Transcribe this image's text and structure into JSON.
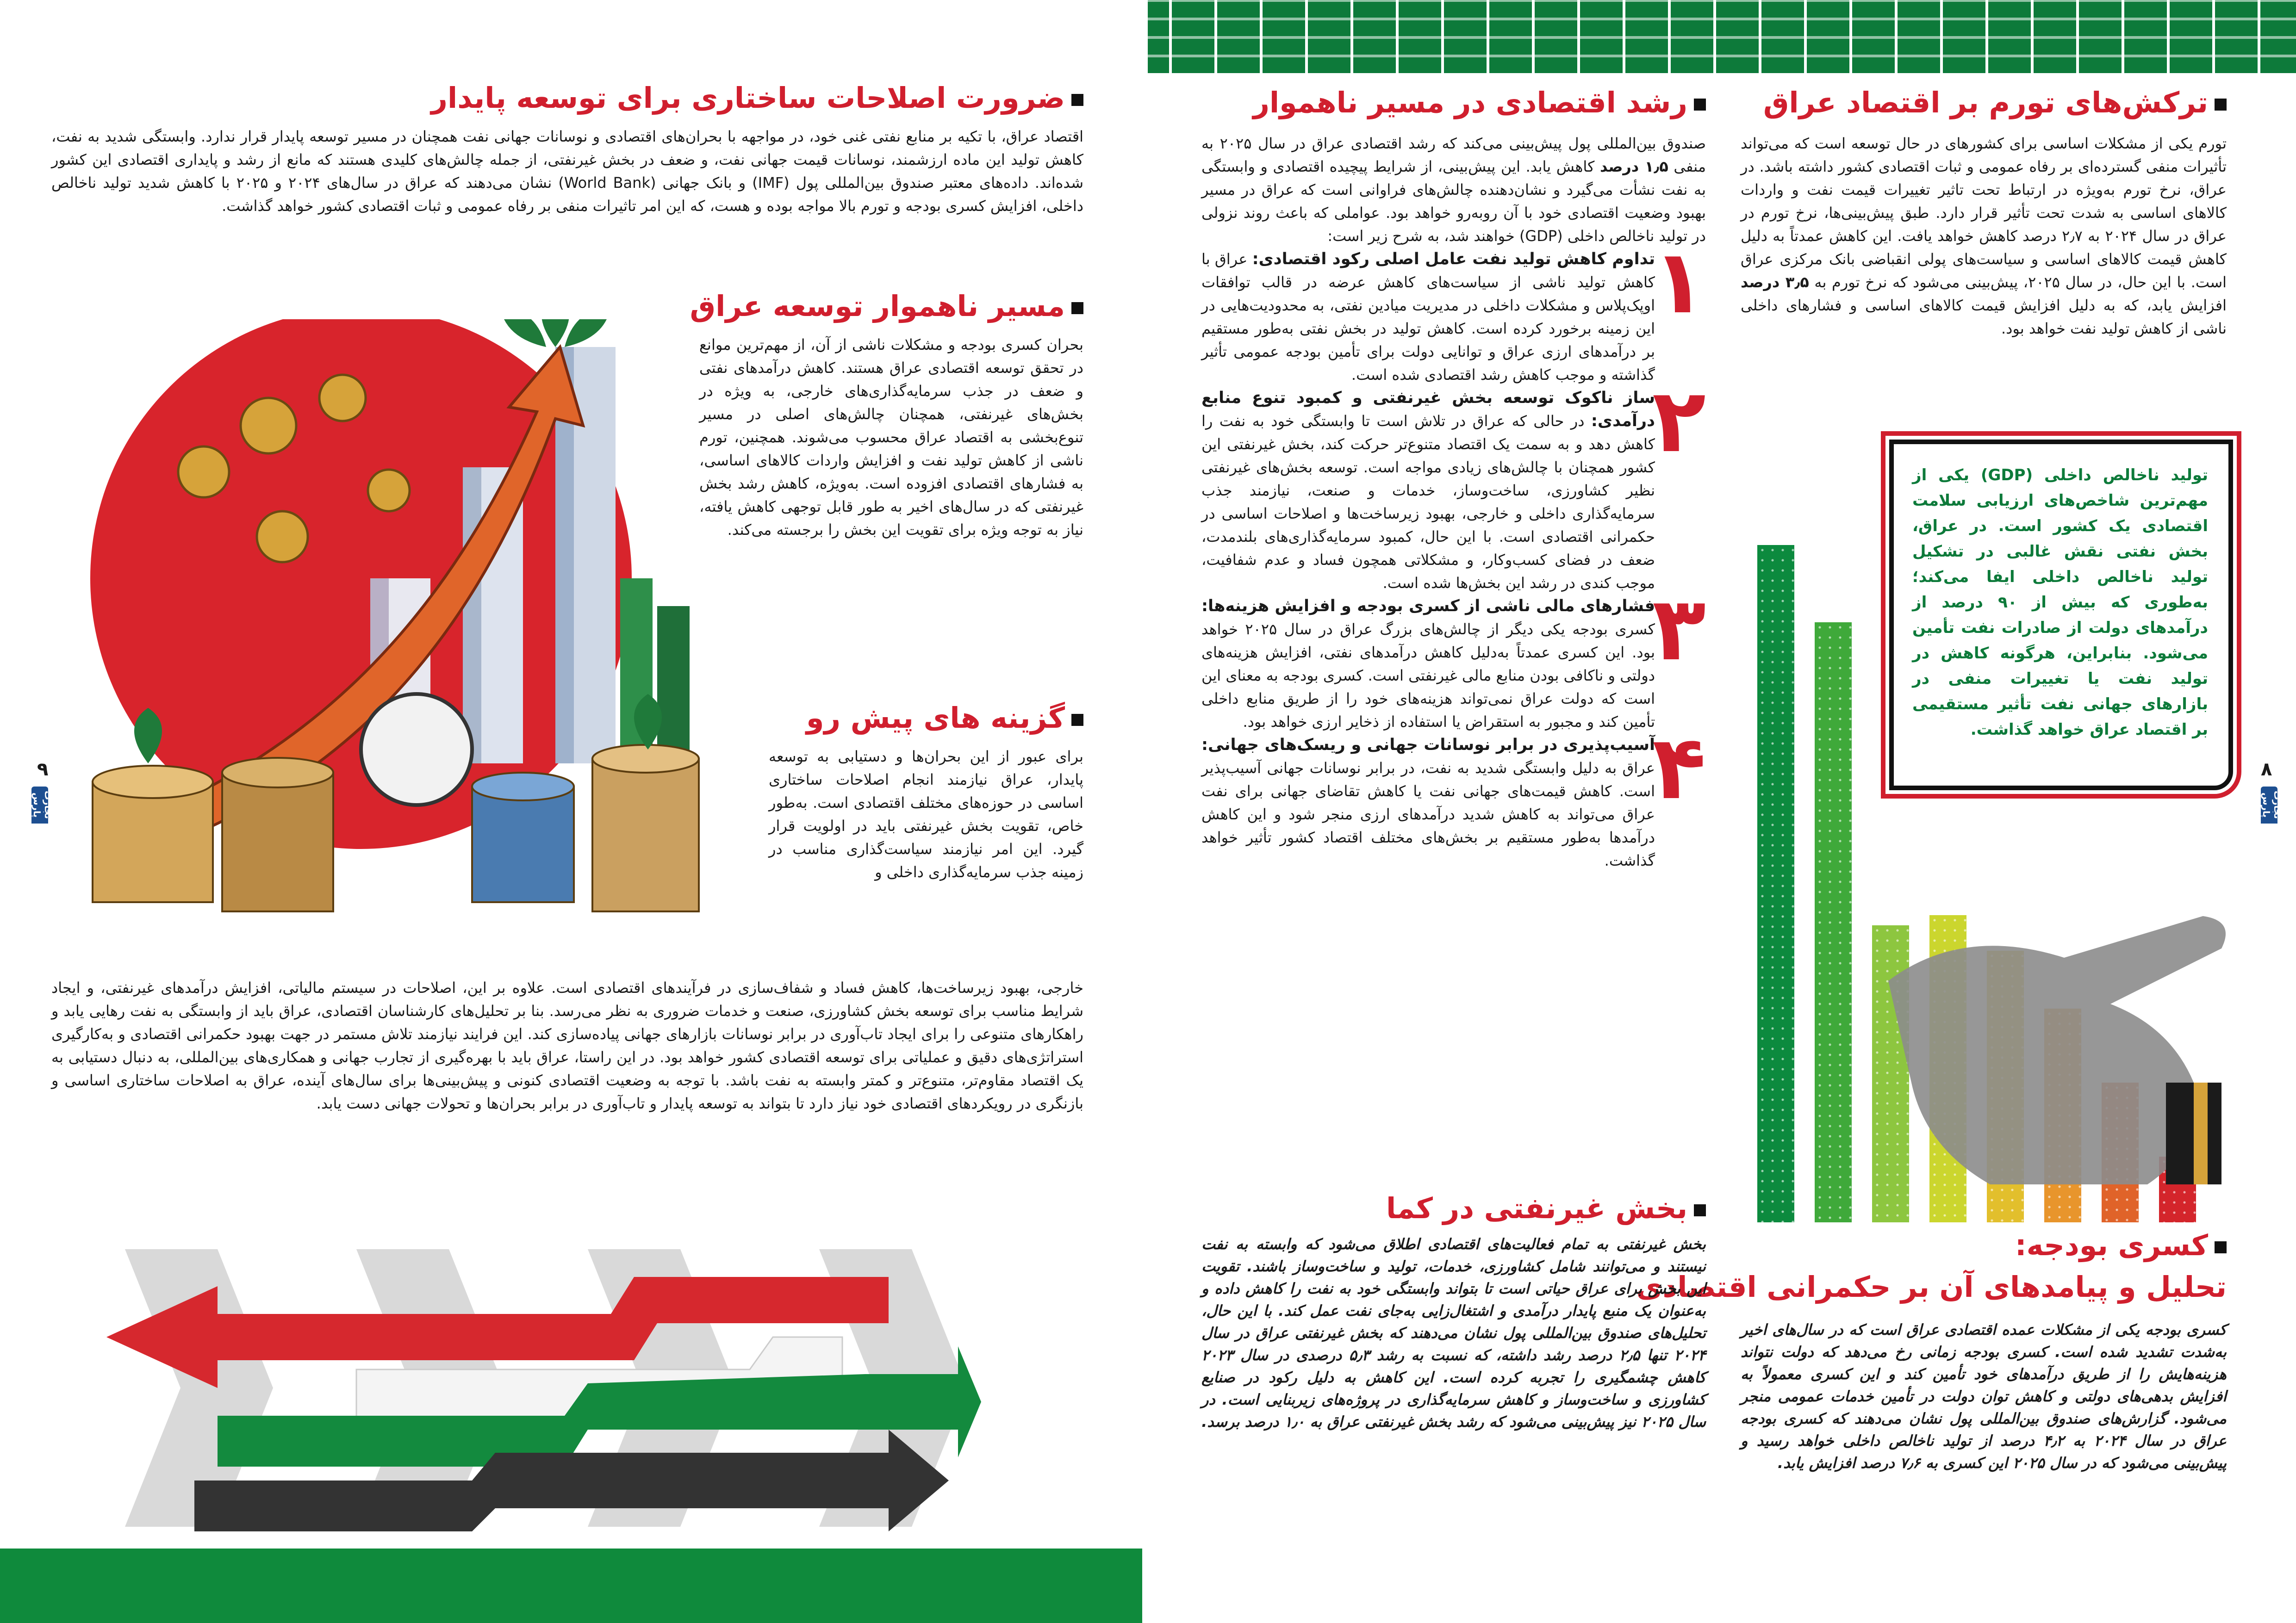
{
  "left_page": {
    "page_number": "٩",
    "logo_text": "تجارت پارس",
    "intro": {
      "title": "ضرورت اصلاحات ساختاری برای توسعه پایدار",
      "body": "اقتصاد عراق، با تکیه بر منابع نفتی غنی خود، در مواجهه با بحران‌های اقتصادی و نوسانات جهانی نفت همچنان در مسیر توسعه پایدار قرار ندارد. وابستگی شدید به نفت، کاهش تولید این ماده ارزشمند، نوسانات قیمت جهانی نفت، و ضعف در بخش غیرنفتی، از جمله چالش‌های کلیدی هستند که مانع از رشد و پایداری اقتصادی این کشور شده‌اند. داده‌های معتبر صندوق بین‌المللی پول (IMF) و بانک جهانی (World Bank) نشان می‌دهند که عراق در سال‌های ۲۰۲۴ و ۲۰۲۵ با کاهش شدید تولید ناخالص داخلی، افزایش کسری بودجه و تورم بالا مواجه بوده و هست، که این امر تاثیرات منفی بر رفاه عمومی و ثبات اقتصادی کشور خواهد گذاشت."
    },
    "rough_path": {
      "title": "مسیر ناهموار توسعه عراق",
      "body": "بحران کسری بودجه و مشکلات ناشی از آن، از مهم‌ترین موانع در تحقق توسعه اقتصادی عراق هستند. کاهش درآمدهای نفتی و ضعف در جذب سرمایه‌گذاری‌های خارجی، به ویژه در بخش‌های غیرنفتی، همچنان چالش‌های اصلی در مسیر تنوع‌بخشی به اقتصاد عراق محسوب می‌شوند. همچنین، تورم ناشی از کاهش تولید نفت و افزایش واردات کالاهای اساسی، به فشارهای اقتصادی افزوده است. به‌ویژه، کاهش رشد بخش غیرنفتی که در سال‌های اخیر به طور قابل توجهی کاهش یافته، نیاز به توجه ویژه برای تقویت این بخش را برجسته می‌کند."
    },
    "options": {
      "title": "گزینه های پیش رو",
      "body_column": "برای عبور از این بحران‌ها و دستیابی به توسعه پایدار، عراق نیازمند انجام اصلاحات ساختاری اساسی در حوزه‌های مختلف اقتصادی است. به‌طور خاص، تقویت بخش غیرنفتی باید در اولویت قرار گیرد. این امر نیازمند سیاست‌گذاری مناسب در زمینه جذب سرمایه‌گذاری داخلی و",
      "body_full": "خارجی، بهبود زیرساخت‌ها، کاهش فساد و شفاف‌سازی در فرآیندهای اقتصادی است. علاوه بر این، اصلاحات در سیستم مالیاتی، افزایش درآمدهای غیرنفتی، و ایجاد شرایط مناسب برای توسعه بخش کشاورزی، صنعت و خدمات ضروری به نظر می‌رسد. بنا بر تحلیل‌های کارشناسان اقتصادی، عراق باید از وابستگی به نفت رهایی یابد و راهکارهای متنوعی را برای ایجاد تاب‌آوری در برابر نوسانات بازارهای جهانی پیاده‌سازی کند. این فرایند نیازمند تلاش مستمر در جهت بهبود حکمرانی اقتصادی و به‌کارگیری استراتژی‌های دقیق و عملیاتی برای توسعه اقتصادی کشور خواهد بود. در این راستا، عراق باید با بهره‌گیری از تجارب جهانی و همکاری‌های بین‌المللی، به دنبال دستیابی به یک اقتصاد مقاوم‌تر، متنوع‌تر و کمتر وابسته به نفت باشد. با توجه به وضعیت اقتصادی کنونی و پیش‌بینی‌ها برای سال‌های آینده، عراق به اصلاحات ساختاری اساسی و بازنگری در رویکردهای اقتصادی خود نیاز دارد تا بتواند به توسعه پایدار و تاب‌آوری در برابر بحران‌ها و تحولات جهانی دست یابد."
    }
  },
  "right_page": {
    "page_number": "٨",
    "logo_text": "تجارت پارس",
    "inflation": {
      "title": "ترکش‌های تورم بر اقتصاد عراق",
      "body_1": "تورم یکی از مشکلات اساسی برای کشورهای در حال توسعه است که می‌تواند تأثیرات منفی گسترده‌ای بر رفاه عمومی و ثبات اقتصادی کشور داشته باشد. در عراق، نرخ تورم به‌ویژه در ارتباط تحت تاثیر تغییرات قیمت نفت و واردات کالاهای اساسی به شدت تحت تأثیر قرار دارد. طبق پیش‌بینی‌ها، نرخ تورم در عراق در سال ۲۰۲۴ به ۲٫۷ درصد کاهش خواهد یافت. این کاهش عمدتاً به دلیل کاهش قیمت کالاهای اساسی و سیاست‌های پولی انقباضی بانک مرکزی عراق است. با این حال، در سال ۲۰۲۵، پیش‌بینی می‌شود که نرخ تورم به ",
      "body_bold": "۳٫۵ درصد",
      "body_2": " افزایش یابد، که به دلیل افزایش قیمت کالاهای اساسی و فشارهای داخلی ناشی از کاهش تولید نفت خواهد بود."
    },
    "gdp_box": "تولید ناخالص داخلی (GDP) یکی از مهم‌ترین شاخص‌های ارزیابی سلامت اقتصادی یک کشور است. در عراق، بخش نفتی نقش غالبی در تشکیل تولید ناخالص داخلی ایفا می‌کند؛ به‌طوری که بیش از ۹۰ درصد از درآمدهای دولت از صادرات نفت تأمین می‌شود. بنابراین، هرگونه کاهش در تولید نفت یا تغییرات منفی در بازارهای جهانی نفت تأثیر مستقیمی بر اقتصاد عراق خواهد گذاشت.",
    "bar_colors": [
      "#0c8a3e",
      "#3fa93a",
      "#8dc63f",
      "#cbd62e",
      "#e2bf2c",
      "#e8952c",
      "#e06329",
      "#d4252b"
    ],
    "growth": {
      "title": "رشد اقتصادی در مسیر ناهموار",
      "intro_1": "صندوق بین‌المللی پول پیش‌بینی می‌کند که رشد اقتصادی عراق در سال ۲۰۲۵ به منفی ",
      "intro_bold": "۱٫۵ درصد",
      "intro_2": " کاهش یابد. این پیش‌بینی، از شرایط پیچیده اقتصادی و وابستگی به نفت نشأت می‌گیرد و نشان‌دهنده چالش‌های فراوانی است که عراق در مسیر بهبود وضعیت اقتصادی خود با آن روبه‌رو خواهد بود. عواملی که باعث روند نزولی در تولید ناخالص داخلی (GDP) خواهند شد، به شرح زیر است:",
      "items": [
        {
          "number": "۱",
          "title": "تداوم کاهش تولید نفت عامل اصلی رکود اقتصادی:",
          "body": " عراق با کاهش تولید ناشی از سیاست‌های کاهش عرضه در قالب توافقات اوپک‌پلاس و مشکلات داخلی در مدیریت میادین نفتی، به محدودیت‌هایی در این زمینه برخورد کرده است. کاهش تولید در بخش نفتی به‌طور مستقیم بر درآمدهای ارزی عراق و توانایی دولت برای تأمین بودجه عمومی تأثیر گذاشته و موجب کاهش رشد اقتصادی شده است."
        },
        {
          "number": "۲",
          "title": "ساز ناکوک توسعه بخش غیرنفتی و کمبود تنوع منابع درآمدی:",
          "body": " در حالی که عراق در تلاش است تا وابستگی خود به نفت را کاهش دهد و به سمت یک اقتصاد متنوع‌تر حرکت کند، بخش غیرنفتی این کشور همچنان با چالش‌های زیادی مواجه است. توسعه بخش‌های غیرنفتی نظیر کشاورزی، ساخت‌وساز، خدمات و صنعت، نیازمند جذب سرمایه‌گذاری داخلی و خارجی، بهبود زیرساخت‌ها و اصلاحات اساسی در حکمرانی اقتصادی است. با این حال، کمبود سرمایه‌گذاری‌های بلندمدت، ضعف در فضای کسب‌وکار، و مشکلاتی همچون فساد و عدم شفافیت، موجب کندی در رشد این بخش‌ها شده است."
        },
        {
          "number": "۳",
          "title": "فشارهای مالی ناشی از کسری بودجه و افزایش هزینه‌ها:",
          "body": " کسری بودجه یکی دیگر از چالش‌های بزرگ عراق در سال ۲۰۲۵ خواهد بود. این کسری عمدتاً به‌دلیل کاهش درآمدهای نفتی، افزایش هزینه‌های دولتی و ناکافی بودن منابع مالی غیرنفتی است. کسری بودجه به معنای این است که دولت عراق نمی‌تواند هزینه‌های خود را از طریق منابع داخلی تأمین کند و مجبور به استقراض یا استفاده از ذخایر ارزی خواهد بود."
        },
        {
          "number": "۴",
          "title": "آسیب‌پذیری در برابر نوسانات جهانی و ریسک‌های جهانی:",
          "body": " عراق به دلیل وابستگی شدید به نفت، در برابر نوسانات جهانی آسیب‌پذیر است. کاهش قیمت‌های جهانی نفت یا کاهش تقاضای جهانی برای نفت عراق می‌تواند به کاهش شدید درآمدهای ارزی منجر شود و این کاهش درآمدها به‌طور مستقیم بر بخش‌های مختلف اقتصاد کشور تأثیر خواهد گذاشت."
        }
      ]
    },
    "non_oil": {
      "title": "بخش غیرنفتی در کما",
      "body": "بخش غیرنفتی به تمام فعالیت‌های اقتصادی اطلاق می‌شود که وابسته به نفت نیستند و می‌توانند شامل کشاورزی، خدمات، تولید و ساخت‌وساز باشند. تقویت این بخش برای عراق حیاتی است تا بتواند وابستگی خود به نفت را کاهش داده و به‌عنوان یک منبع پایدار درآمدی و اشتغال‌زایی به‌جای نفت عمل کند. با این حال، تحلیل‌های صندوق بین‌المللی پول نشان می‌دهند که بخش غیرنفتی عراق در سال ۲۰۲۴ تنها ۲٫۵ درصد رشد داشته، که نسبت به رشد ۵٫۳ درصدی در سال ۲۰۲۳ کاهش چشمگیری را تجربه کرده است. این کاهش به دلیل رکود در صنایع کشاورزی و ساخت‌وساز و کاهش سرمایه‌گذاری در پروژه‌های زیربنایی است. در سال ۲۰۲۵ نیز پیش‌بینی می‌شود که رشد بخش غیرنفتی عراق به ۱٫۰ درصد برسد."
    },
    "deficit": {
      "title_1": "کسری بودجه:",
      "title_2": "تحلیل و پیامدهای آن بر حکمرانی اقتصادی",
      "body": "کسری بودجه یکی از مشکلات عمده اقتصادی عراق است که در سال‌های اخیر به‌شدت تشدید شده است. کسری بودجه زمانی رخ می‌دهد که دولت نتواند هزینه‌هایش را از طریق درآمدهای خود تأمین کند و این کسری معمولاً به افزایش بدهی‌های دولتی و کاهش توان دولت در تأمین خدمات عمومی منجر می‌شود. گزارش‌های صندوق بین‌المللی پول نشان می‌دهند که کسری بودجه عراق در سال ۲۰۲۴ به ۴٫۲ درصد از تولید ناخالص داخلی خواهد رسید و پیش‌بینی می‌شود که در سال ۲۰۲۵ این کسری به ۷٫۶ درصد افزایش یابد."
    }
  },
  "colors": {
    "heading_red": "#d01f2e",
    "brand_green": "#0d7a3a",
    "logo_blue": "#1d4f91"
  }
}
